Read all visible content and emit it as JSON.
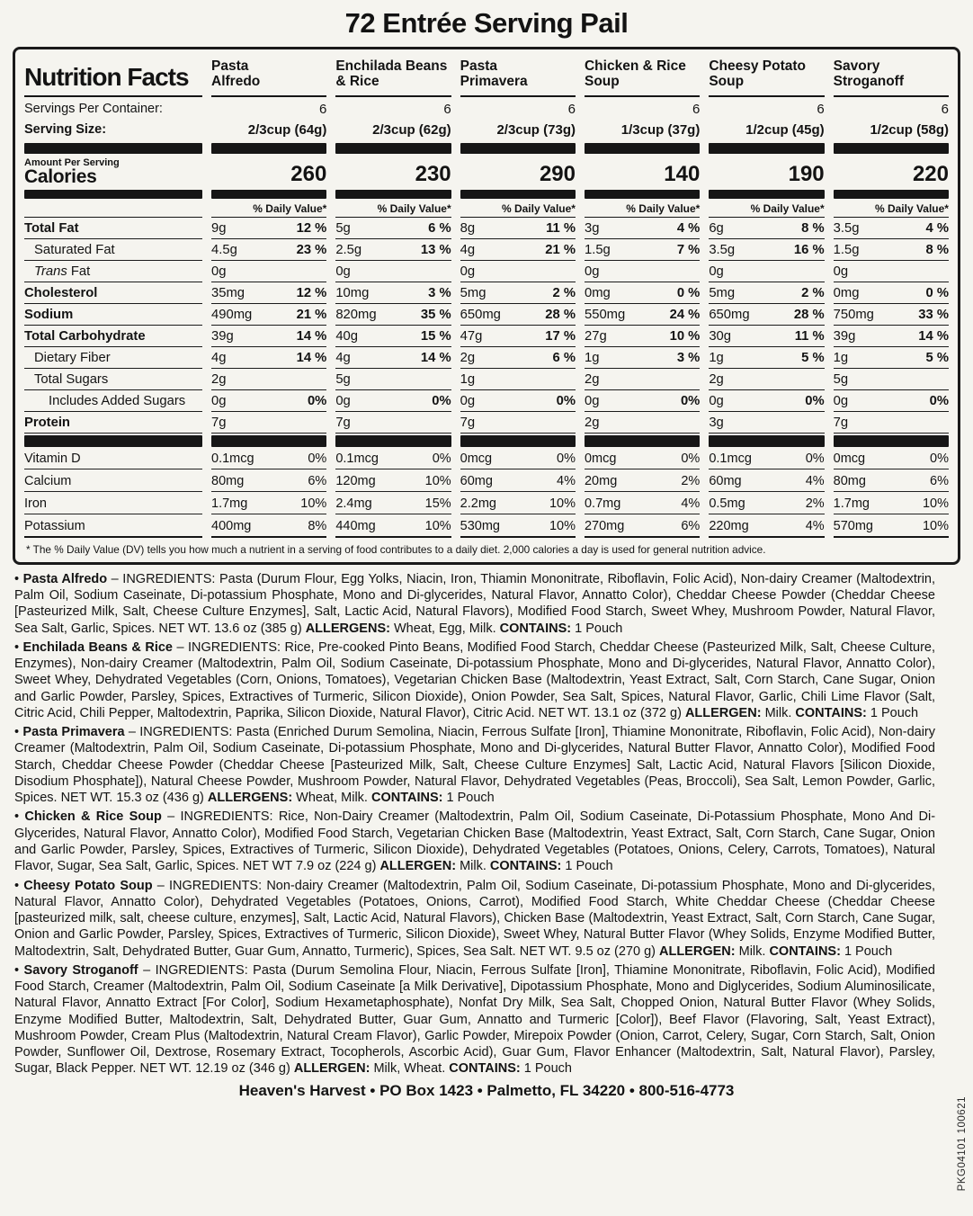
{
  "page": {
    "title": "72 Entrée Serving Pail",
    "footer": "Heaven's Harvest • PO Box 1423 • Palmetto, FL 34220 • 800-516-4773",
    "side_code": "PKG04101 100621",
    "bullet": "•"
  },
  "table": {
    "heading": "Nutrition Facts",
    "servings_label": "Servings Per Container:",
    "serving_size_label": "Serving Size:",
    "amount_per_serving_label": "Amount Per Serving",
    "calories_label": "Calories",
    "daily_value_header": "% Daily Value*",
    "footnote": "* The % Daily Value (DV) tells you how much a nutrient in a serving of food contributes to a daily diet. 2,000 calories a day is used for general nutrition advice.",
    "products": [
      {
        "name": "Pasta\nAlfredo",
        "servings": "6",
        "serving_size": "2/3cup (64g)",
        "calories": "260"
      },
      {
        "name": "Enchilada Beans\n& Rice",
        "servings": "6",
        "serving_size": "2/3cup (62g)",
        "calories": "230"
      },
      {
        "name": "Pasta\nPrimavera",
        "servings": "6",
        "serving_size": "2/3cup (73g)",
        "calories": "290"
      },
      {
        "name": "Chicken & Rice\nSoup",
        "servings": "6",
        "serving_size": "1/3cup (37g)",
        "calories": "140"
      },
      {
        "name": "Cheesy Potato\nSoup",
        "servings": "6",
        "serving_size": "1/2cup (45g)",
        "calories": "190"
      },
      {
        "name": "Savory\nStroganoff",
        "servings": "6",
        "serving_size": "1/2cup (58g)",
        "calories": "220"
      }
    ],
    "nutrient_rows": [
      {
        "label": "Total Fat",
        "style": "b",
        "cells": [
          [
            "9g",
            "12 %"
          ],
          [
            "5g",
            "6 %"
          ],
          [
            "8g",
            "11 %"
          ],
          [
            "3g",
            "4 %"
          ],
          [
            "6g",
            "8 %"
          ],
          [
            "3.5g",
            "4 %"
          ]
        ]
      },
      {
        "label": "Saturated Fat",
        "style": "i1",
        "cells": [
          [
            "4.5g",
            "23 %"
          ],
          [
            "2.5g",
            "13 %"
          ],
          [
            "4g",
            "21 %"
          ],
          [
            "1.5g",
            "7 %"
          ],
          [
            "3.5g",
            "16 %"
          ],
          [
            "1.5g",
            "8 %"
          ]
        ]
      },
      {
        "label": "Fat",
        "em": "Trans",
        "style": "i1",
        "cells": [
          [
            "0g",
            ""
          ],
          [
            "0g",
            ""
          ],
          [
            "0g",
            ""
          ],
          [
            "0g",
            ""
          ],
          [
            "0g",
            ""
          ],
          [
            "0g",
            ""
          ]
        ]
      },
      {
        "label": "Cholesterol",
        "style": "b",
        "cells": [
          [
            "35mg",
            "12 %"
          ],
          [
            "10mg",
            "3 %"
          ],
          [
            "5mg",
            "2 %"
          ],
          [
            "0mg",
            "0 %"
          ],
          [
            "5mg",
            "2 %"
          ],
          [
            "0mg",
            "0 %"
          ]
        ]
      },
      {
        "label": "Sodium",
        "style": "b",
        "cells": [
          [
            "490mg",
            "21 %"
          ],
          [
            "820mg",
            "35 %"
          ],
          [
            "650mg",
            "28 %"
          ],
          [
            "550mg",
            "24 %"
          ],
          [
            "650mg",
            "28 %"
          ],
          [
            "750mg",
            "33 %"
          ]
        ]
      },
      {
        "label": "Total Carbohydrate",
        "style": "b",
        "cells": [
          [
            "39g",
            "14 %"
          ],
          [
            "40g",
            "15 %"
          ],
          [
            "47g",
            "17 %"
          ],
          [
            "27g",
            "10 %"
          ],
          [
            "30g",
            "11 %"
          ],
          [
            "39g",
            "14 %"
          ]
        ]
      },
      {
        "label": "Dietary Fiber",
        "style": "i1",
        "cells": [
          [
            "4g",
            "14 %"
          ],
          [
            "4g",
            "14 %"
          ],
          [
            "2g",
            "6 %"
          ],
          [
            "1g",
            "3 %"
          ],
          [
            "1g",
            "5 %"
          ],
          [
            "1g",
            "5 %"
          ]
        ]
      },
      {
        "label": "Total Sugars",
        "style": "i1",
        "cells": [
          [
            "2g",
            ""
          ],
          [
            "5g",
            ""
          ],
          [
            "1g",
            ""
          ],
          [
            "2g",
            ""
          ],
          [
            "2g",
            ""
          ],
          [
            "5g",
            ""
          ]
        ]
      },
      {
        "label": "Includes Added Sugars",
        "style": "i2",
        "cells": [
          [
            "0g",
            "0%"
          ],
          [
            "0g",
            "0%"
          ],
          [
            "0g",
            "0%"
          ],
          [
            "0g",
            "0%"
          ],
          [
            "0g",
            "0%"
          ],
          [
            "0g",
            "0%"
          ]
        ]
      },
      {
        "label": "Protein",
        "style": "b",
        "cells": [
          [
            "7g",
            ""
          ],
          [
            "7g",
            ""
          ],
          [
            "7g",
            ""
          ],
          [
            "2g",
            ""
          ],
          [
            "3g",
            ""
          ],
          [
            "7g",
            ""
          ]
        ]
      }
    ],
    "vitamin_rows": [
      {
        "label": "Vitamin D",
        "cells": [
          [
            "0.1mcg",
            "0%"
          ],
          [
            "0.1mcg",
            "0%"
          ],
          [
            "0mcg",
            "0%"
          ],
          [
            "0mcg",
            "0%"
          ],
          [
            "0.1mcg",
            "0%"
          ],
          [
            "0mcg",
            "0%"
          ]
        ]
      },
      {
        "label": "Calcium",
        "cells": [
          [
            "80mg",
            "6%"
          ],
          [
            "120mg",
            "10%"
          ],
          [
            "60mg",
            "4%"
          ],
          [
            "20mg",
            "2%"
          ],
          [
            "60mg",
            "4%"
          ],
          [
            "80mg",
            "6%"
          ]
        ]
      },
      {
        "label": "Iron",
        "cells": [
          [
            "1.7mg",
            "10%"
          ],
          [
            "2.4mg",
            "15%"
          ],
          [
            "2.2mg",
            "10%"
          ],
          [
            "0.7mg",
            "4%"
          ],
          [
            "0.5mg",
            "2%"
          ],
          [
            "1.7mg",
            "10%"
          ]
        ]
      },
      {
        "label": "Potassium",
        "cells": [
          [
            "400mg",
            "8%"
          ],
          [
            "440mg",
            "10%"
          ],
          [
            "530mg",
            "10%"
          ],
          [
            "270mg",
            "6%"
          ],
          [
            "220mg",
            "4%"
          ],
          [
            "570mg",
            "10%"
          ]
        ]
      }
    ]
  },
  "ingredients": [
    {
      "name": "Pasta Alfredo",
      "text": "– INGREDIENTS: Pasta (Durum Flour, Egg Yolks, Niacin, Iron, Thiamin Mononitrate, Riboflavin, Folic Acid), Non-dairy Creamer (Maltodextrin, Palm Oil, Sodium Caseinate, Di-potassium Phosphate, Mono and Di-glycerides, Natural Flavor, Annatto Color), Cheddar Cheese Powder (Cheddar Cheese [Pasteurized Milk, Salt, Cheese Culture Enzymes], Salt, Lactic Acid, Natural Flavors), Modified Food Starch, Sweet Whey, Mushroom Powder, Natural Flavor, Sea Salt, Garlic, Spices.  NET WT. 13.6 oz (385 g) ",
      "allergen_label": "ALLERGENS:",
      "allergen_value": " Wheat, Egg, Milk. ",
      "contains_label": "CONTAINS:",
      "contains_value": " 1 Pouch"
    },
    {
      "name": "Enchilada Beans & Rice",
      "text": "– INGREDIENTS: Rice, Pre-cooked Pinto Beans, Modified Food Starch,  Cheddar Cheese (Pasteurized Milk, Salt, Cheese Culture, Enzymes), Non-dairy Creamer (Maltodextrin, Palm Oil, Sodium Caseinate, Di-potassium Phosphate, Mono and Di-glycerides, Natural Flavor, Annatto Color), Sweet Whey, Dehydrated Vegetables (Corn, Onions, Tomatoes), Vegetarian Chicken Base (Maltodextrin, Yeast Extract, Salt, Corn Starch, Cane Sugar, Onion and Garlic Powder, Parsley, Spices, Extractives of Turmeric, Silicon Dioxide), Onion Powder, Sea Salt, Spices, Natural Flavor, Garlic, Chili Lime Flavor (Salt, Citric Acid, Chili Pepper, Maltodextrin, Paprika, Silicon Dioxide, Natural Flavor), Citric Acid.  NET WT. 13.1 oz (372 g) ",
      "allergen_label": "ALLERGEN:",
      "allergen_value": " Milk. ",
      "contains_label": "CONTAINS:",
      "contains_value": " 1 Pouch"
    },
    {
      "name": "Pasta Primavera",
      "text": "– INGREDIENTS: Pasta (Enriched Durum Semolina, Niacin, Ferrous Sulfate [Iron], Thiamine Mononitrate, Riboflavin, Folic Acid), Non-dairy Creamer (Maltodextrin, Palm Oil, Sodium Caseinate, Di-potassium Phosphate, Mono and Di-glycerides, Natural Butter Flavor, Annatto Color), Modified Food Starch, Cheddar Cheese Powder (Cheddar Cheese [Pasteurized Milk, Salt, Cheese Culture Enzymes] Salt, Lactic Acid, Natural Flavors [Silicon Dioxide, Disodium Phosphate]), Natural Cheese Powder, Mushroom Powder, Natural Flavor, Dehydrated Vegetables (Peas, Broccoli), Sea Salt, Lemon Powder, Garlic, Spices. NET WT. 15.3 oz (436 g) ",
      "allergen_label": "ALLERGENS:",
      "allergen_value": " Wheat, Milk. ",
      "contains_label": "CONTAINS:",
      "contains_value": " 1 Pouch"
    },
    {
      "name": "Chicken & Rice Soup",
      "text": "– INGREDIENTS: Rice, Non-Dairy Creamer (Maltodextrin, Palm Oil, Sodium Caseinate, Di-Potassium Phosphate, Mono And Di-Glycerides, Natural Flavor, Annatto Color), Modified Food Starch, Vegetarian Chicken Base (Maltodextrin, Yeast Extract, Salt, Corn Starch, Cane Sugar, Onion and Garlic Powder, Parsley, Spices, Extractives of Turmeric, Silicon Dioxide), Dehydrated Vegetables (Potatoes, Onions, Celery, Carrots, Tomatoes), Natural Flavor, Sugar, Sea Salt, Garlic, Spices. NET WT 7.9 oz (224 g) ",
      "allergen_label": "ALLERGEN:",
      "allergen_value": " Milk. ",
      "contains_label": "CONTAINS:",
      "contains_value": " 1 Pouch"
    },
    {
      "name": "Cheesy Potato Soup",
      "text": "– INGREDIENTS: Non-dairy Creamer (Maltodextrin, Palm Oil, Sodium Caseinate, Di-potassium Phosphate, Mono and Di-glycerides, Natural Flavor, Annatto Color), Dehydrated Vegetables (Potatoes, Onions, Carrot), Modified Food Starch, White Cheddar Cheese (Cheddar Cheese [pasteurized milk, salt, cheese culture, enzymes], Salt, Lactic Acid, Natural Flavors), Chicken Base (Maltodextrin, Yeast Extract, Salt, Corn Starch, Cane Sugar, Onion and Garlic Powder, Parsley, Spices, Extractives of Turmeric, Silicon Dioxide), Sweet Whey, Natural Butter Flavor (Whey Solids, Enzyme Modified Butter, Maltodextrin, Salt, Dehydrated Butter, Guar Gum, Annatto, Turmeric), Spices, Sea Salt.  NET WT. 9.5 oz (270 g) ",
      "allergen_label": "ALLERGEN:",
      "allergen_value": " Milk. ",
      "contains_label": "CONTAINS:",
      "contains_value": " 1 Pouch"
    },
    {
      "name": "Savory Stroganoff",
      "text": "– INGREDIENTS: Pasta (Durum Semolina Flour, Niacin, Ferrous Sulfate [Iron], Thiamine Mononitrate, Riboflavin, Folic Acid), Modified Food Starch, Creamer (Maltodextrin, Palm Oil, Sodium Caseinate [a Milk Derivative], Dipotassium Phosphate, Mono and Diglycerides, Sodium Aluminosilicate, Natural Flavor, Annatto Extract [For Color], Sodium Hexametaphosphate), Nonfat Dry Milk, Sea Salt, Chopped Onion, Natural Butter Flavor (Whey Solids, Enzyme Modified Butter, Maltodextrin, Salt, Dehydrated Butter, Guar Gum, Annatto and Turmeric [Color]), Beef Flavor (Flavoring, Salt, Yeast Extract), Mushroom Powder, Cream Plus (Maltodextrin, Natural Cream Flavor), Garlic Powder, Mirepoix Powder (Onion, Carrot, Celery, Sugar, Corn Starch, Salt, Onion Powder, Sunflower Oil, Dextrose, Rosemary Extract, Tocopherols, Ascorbic Acid), Guar Gum, Flavor Enhancer (Maltodextrin, Salt, Natural Flavor), Parsley, Sugar, Black Pepper. NET WT. 12.19 oz (346 g) ",
      "allergen_label": "ALLERGEN:",
      "allergen_value": " Milk, Wheat. ",
      "contains_label": "CONTAINS:",
      "contains_value": " 1 Pouch"
    }
  ]
}
